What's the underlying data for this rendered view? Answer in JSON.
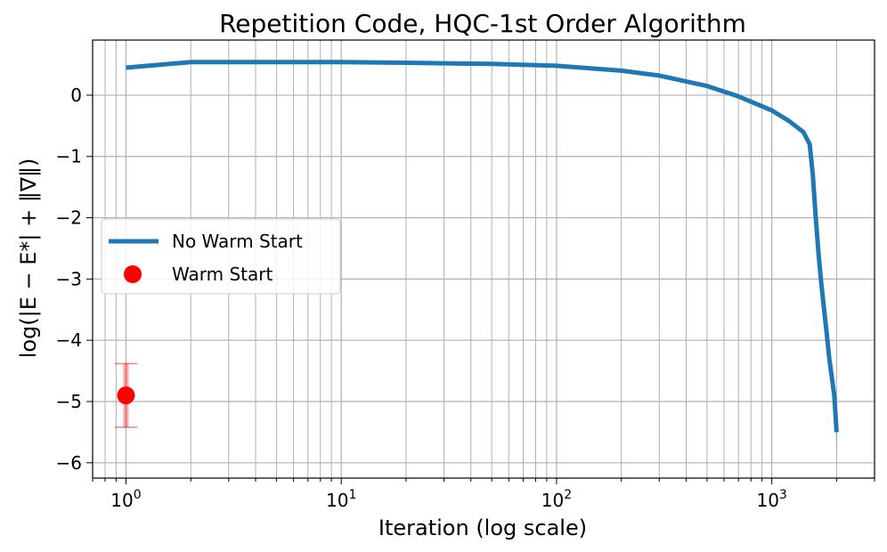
{
  "chart_data": {
    "type": "line",
    "title": "Repetition Code, HQC-1st Order Algorithm",
    "xlabel": "Iteration (log scale)",
    "ylabel": "log(|E − E*| + ‖∇‖)",
    "xscale": "log",
    "xlim": [
      0.7,
      3000
    ],
    "ylim": [
      -6.25,
      0.9
    ],
    "grid": true,
    "grid_minor_x": true,
    "legend": "center-left",
    "x_ticks": [
      {
        "value": 1,
        "base": "10",
        "exp": "0"
      },
      {
        "value": 10,
        "base": "10",
        "exp": "1"
      },
      {
        "value": 100,
        "base": "10",
        "exp": "2"
      },
      {
        "value": 1000,
        "base": "10",
        "exp": "3"
      }
    ],
    "y_ticks": [
      {
        "value": 0,
        "label": "0"
      },
      {
        "value": -1,
        "label": "−1"
      },
      {
        "value": -2,
        "label": "−2"
      },
      {
        "value": -3,
        "label": "−3"
      },
      {
        "value": -4,
        "label": "−4"
      },
      {
        "value": -5,
        "label": "−5"
      },
      {
        "value": -6,
        "label": "−6"
      }
    ],
    "series": [
      {
        "name": "No Warm Start",
        "kind": "line",
        "color": "#1f77b4",
        "x": [
          1,
          2,
          3,
          5,
          10,
          20,
          50,
          100,
          200,
          300,
          500,
          700,
          1000,
          1200,
          1400,
          1500,
          1550,
          1600,
          1650,
          1700,
          1750,
          1800,
          1850,
          1900,
          1950,
          2000
        ],
        "y": [
          0.45,
          0.54,
          0.54,
          0.54,
          0.54,
          0.53,
          0.51,
          0.48,
          0.4,
          0.32,
          0.15,
          -0.02,
          -0.25,
          -0.42,
          -0.6,
          -0.8,
          -1.3,
          -2.0,
          -2.6,
          -3.1,
          -3.5,
          -3.9,
          -4.3,
          -4.6,
          -4.9,
          -5.5
        ],
        "band_upper": [
          0.45,
          0.54,
          0.54,
          0.54,
          0.54,
          0.53,
          0.51,
          0.48,
          0.4,
          0.32,
          0.15,
          -0.02,
          -0.25,
          -0.42,
          -0.6,
          -0.8,
          -1.3,
          -2.0,
          -2.55,
          -3.0,
          -3.4,
          -3.8,
          -4.2,
          -4.5,
          -4.75,
          -5.2
        ],
        "band_lower": [
          0.45,
          0.54,
          0.54,
          0.54,
          0.54,
          0.53,
          0.51,
          0.48,
          0.4,
          0.32,
          0.15,
          -0.02,
          -0.25,
          -0.42,
          -0.6,
          -0.8,
          -1.3,
          -2.0,
          -2.65,
          -3.2,
          -3.6,
          -4.0,
          -4.4,
          -4.7,
          -5.1,
          -5.95
        ]
      },
      {
        "name": "Warm Start",
        "kind": "point",
        "color": "#ff0000",
        "x": [
          1
        ],
        "y": [
          -4.9
        ],
        "yerr": [
          0.52
        ]
      }
    ]
  }
}
